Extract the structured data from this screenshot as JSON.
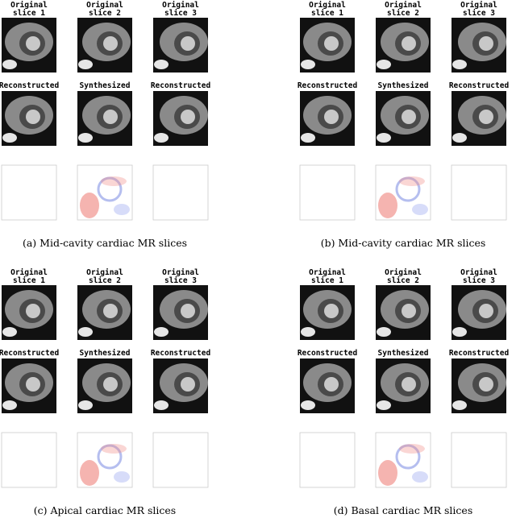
{
  "panels": [
    {
      "column_labels": [
        [
          "Original",
          "slice 1"
        ],
        [
          "Original",
          "slice 2"
        ],
        [
          "Original",
          "slice 3"
        ]
      ],
      "row_labels": [
        "Reconstructed",
        "Synthesized",
        "Reconstructed"
      ],
      "caption": "(a) Mid-cavity cardiac MR slices"
    },
    {
      "column_labels": [
        [
          "Original",
          "slice 1"
        ],
        [
          "Original",
          "slice 2"
        ],
        [
          "Original",
          "slice 3"
        ]
      ],
      "row_labels": [
        "Reconstructed",
        "Synthesized",
        "Reconstructed"
      ],
      "caption": "(b) Mid-cavity cardiac MR slices"
    },
    {
      "column_labels": [
        [
          "Original",
          "slice 1"
        ],
        [
          "Original",
          "slice 2"
        ],
        [
          "Original",
          "slice 3"
        ]
      ],
      "row_labels": [
        "Reconstructed",
        "Synthesized",
        "Reconstructed"
      ],
      "caption": "(c) Apical cardiac MR slices"
    },
    {
      "column_labels": [
        [
          "Original",
          "slice 1"
        ],
        [
          "Original",
          "slice 2"
        ],
        [
          "Original",
          "slice 3"
        ]
      ],
      "row_labels": [
        "Reconstructed",
        "Synthesized",
        "Reconstructed"
      ],
      "caption": "(d) Basal cardiac MR slices"
    }
  ]
}
